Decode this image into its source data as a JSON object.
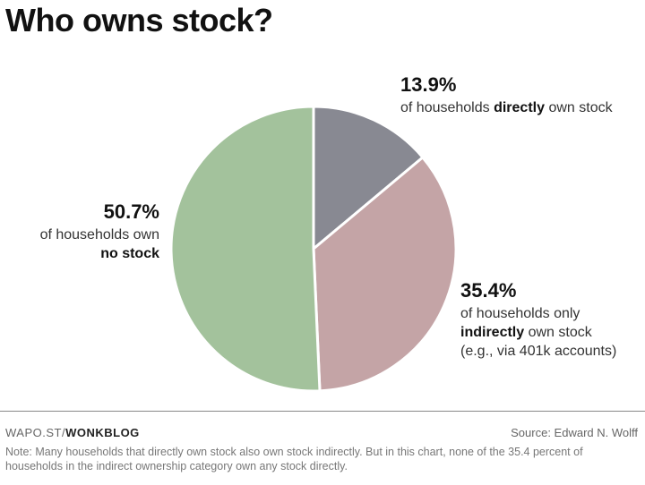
{
  "title": "Who owns stock?",
  "chart_data": {
    "type": "pie",
    "title": "Who owns stock?",
    "slices": [
      {
        "value": 13.9,
        "value_label": "13.9%",
        "color": "#888992",
        "text_before": "of households ",
        "emphasis": "directly",
        "text_after": " own stock"
      },
      {
        "value": 35.4,
        "value_label": "35.4%",
        "color": "#c4a4a6",
        "text_before": "of households only ",
        "emphasis": "indirectly",
        "text_after": " own stock",
        "extra": "(e.g., via 401k accounts)"
      },
      {
        "value": 50.7,
        "value_label": "50.7%",
        "color": "#a3c29c",
        "text_before": "of households own ",
        "emphasis": "no stock",
        "text_after": ""
      }
    ]
  },
  "footer": {
    "credit_prefix": "WAPO.ST/",
    "credit_bold": "WONKBLOG",
    "source": "Source: Edward N. Wolff",
    "note": "Note: Many households that directly own stock also own stock indirectly. But in this chart, none of the 35.4 percent of households in the indirect ownership category own any stock directly."
  }
}
